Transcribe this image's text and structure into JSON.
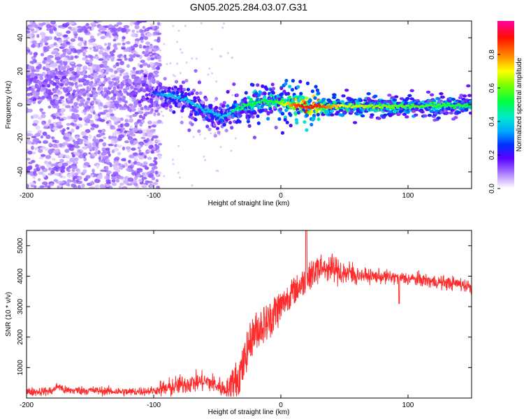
{
  "title": "GN05.2025.284.03.07.G31",
  "chart_data": [
    {
      "type": "heatmap",
      "title": "",
      "xlabel": "Height of straight line (km)",
      "ylabel": "Frequency (Hz)",
      "xlim": [
        -200,
        150
      ],
      "ylim": [
        -50,
        50
      ],
      "xticks": [
        -200,
        -100,
        0,
        100
      ],
      "yticks": [
        40,
        20,
        0,
        -20,
        -40
      ],
      "colorbar": {
        "label": "Normalized spectral amplitude",
        "range": [
          0,
          1
        ],
        "ticks": [
          0.0,
          0.2,
          0.4,
          0.6,
          0.8
        ]
      },
      "noise_region_x": [
        -200,
        -95
      ],
      "ridge": {
        "x": [
          -200,
          -180,
          -160,
          -140,
          -120,
          -100,
          -90,
          -80,
          -70,
          -60,
          -50,
          -45,
          -40,
          -35,
          -30,
          -25,
          -20,
          -15,
          -10,
          -5,
          0,
          10,
          20,
          30,
          50,
          100,
          150
        ],
        "freq": [
          12,
          14,
          12,
          10,
          8,
          7,
          6,
          4,
          1,
          -3,
          -6,
          -7,
          -5,
          -3,
          -1,
          0,
          1,
          2,
          2,
          2,
          1,
          0,
          -1,
          -1,
          -1,
          -1,
          0
        ],
        "amplitude": [
          0.12,
          0.14,
          0.12,
          0.1,
          0.12,
          0.18,
          0.3,
          0.3,
          0.3,
          0.3,
          0.3,
          0.32,
          0.35,
          0.4,
          0.45,
          0.45,
          0.45,
          0.45,
          0.45,
          0.45,
          0.55,
          0.75,
          0.85,
          0.8,
          0.6,
          0.5,
          0.45
        ]
      }
    },
    {
      "type": "line",
      "title": "",
      "xlabel": "Height of straight line (km)",
      "ylabel": "SNR (10 * v/v)",
      "xlim": [
        -200,
        150
      ],
      "ylim": [
        0,
        5500
      ],
      "xticks": [
        -200,
        -100,
        0,
        100
      ],
      "yticks": [
        1000,
        2000,
        3000,
        4000,
        5000
      ],
      "color": "#ff2a2a",
      "series": [
        {
          "name": "SNR",
          "x": [
            -200,
            -180,
            -175,
            -170,
            -150,
            -120,
            -100,
            -90,
            -80,
            -70,
            -60,
            -55,
            -50,
            -45,
            -40,
            -35,
            -30,
            -25,
            -20,
            -15,
            -10,
            -5,
            0,
            5,
            10,
            15,
            20,
            25,
            30,
            35,
            40,
            50,
            60,
            70,
            80,
            90,
            100,
            110,
            120,
            130,
            140,
            150
          ],
          "y": [
            200,
            230,
            400,
            250,
            250,
            200,
            240,
            300,
            420,
            500,
            550,
            500,
            400,
            300,
            350,
            600,
            1000,
            1800,
            2200,
            2400,
            2500,
            2800,
            3000,
            3300,
            3500,
            3700,
            3900,
            4100,
            4200,
            4300,
            4250,
            4100,
            4050,
            4000,
            3980,
            3950,
            3920,
            3880,
            3820,
            3780,
            3750,
            3650
          ]
        }
      ]
    }
  ]
}
